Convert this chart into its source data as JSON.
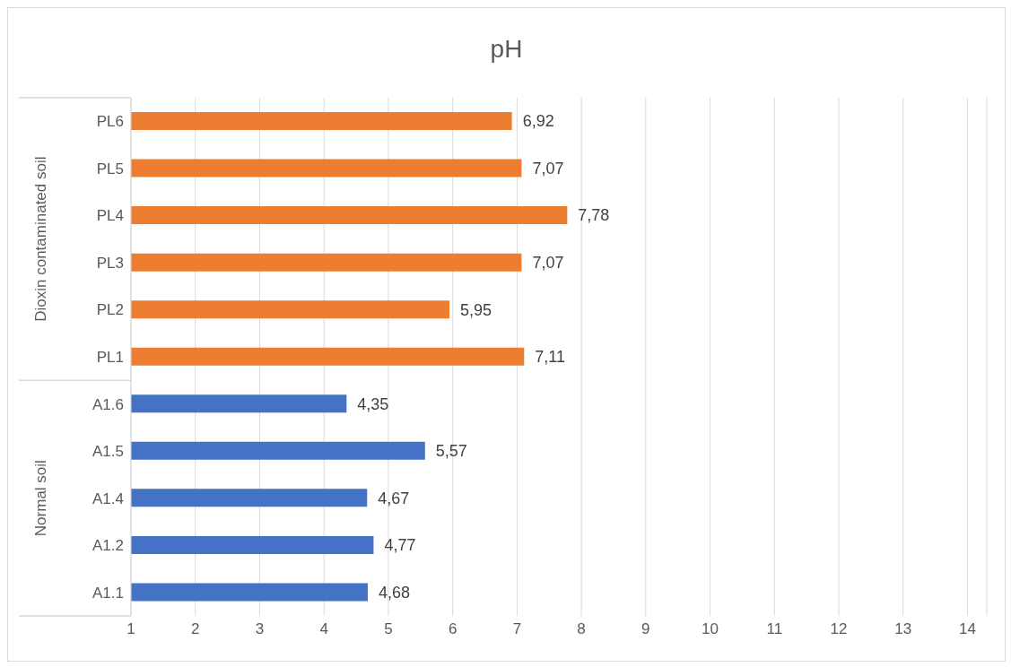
{
  "chart_data": {
    "type": "bar",
    "orientation": "horizontal",
    "title": "pH",
    "categories": [
      "PL6",
      "PL5",
      "PL4",
      "PL3",
      "PL2",
      "PL1",
      "A1.6",
      "A1.5",
      "A1.4",
      "A1.2",
      "A1.1"
    ],
    "series": [
      {
        "color": "#ed7d31",
        "values": [
          6.92,
          7.07,
          7.78,
          7.07,
          5.95,
          7.11,
          null,
          null,
          null,
          null,
          null
        ],
        "value_labels": [
          "6,92",
          "7,07",
          "7,78",
          "7,07",
          "5,95",
          "7,11",
          null,
          null,
          null,
          null,
          null
        ]
      },
      {
        "color": "#4472c4",
        "values": [
          null,
          null,
          null,
          null,
          null,
          null,
          4.35,
          5.57,
          4.67,
          4.77,
          4.68
        ],
        "value_labels": [
          null,
          null,
          null,
          null,
          null,
          null,
          "4,35",
          "5,57",
          "4,67",
          "4,77",
          "4,68"
        ]
      }
    ],
    "xlim": [
      1,
      14.3
    ],
    "xticks": [
      1,
      2,
      3,
      4,
      5,
      6,
      7,
      8,
      9,
      10,
      11,
      12,
      13,
      14
    ],
    "grid": "x",
    "annotations": [
      "Dioxin contaminated soil",
      "Normal soil"
    ]
  }
}
